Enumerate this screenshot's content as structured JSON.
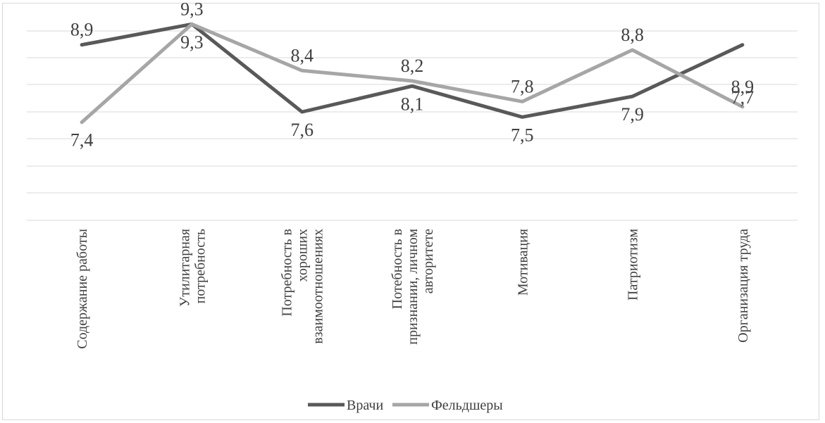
{
  "chart_data": {
    "type": "line",
    "title": "",
    "xlabel": "",
    "ylabel": "",
    "ylim": [
      5.5,
      9.7
    ],
    "grid": true,
    "legend_position": "bottom",
    "categories": [
      [
        "Содержание работы"
      ],
      [
        "Утилитарная",
        "потребность"
      ],
      [
        "Потребность в",
        "хороших",
        "взаимоотношениях"
      ],
      [
        "Потебность в",
        "признании, личном",
        "авторитете"
      ],
      [
        "Мотивация"
      ],
      [
        "Патриотизм"
      ],
      [
        "Организация труда"
      ]
    ],
    "series": [
      {
        "name": "Врачи",
        "color": "#595959",
        "values": [
          8.9,
          9.3,
          7.6,
          8.1,
          7.5,
          7.9,
          8.9
        ],
        "labels": [
          "8,9",
          "9,3",
          "7,6",
          "8,1",
          "7,5",
          "7,9",
          "8,9"
        ]
      },
      {
        "name": "Фельдшеры",
        "color": "#a6a6a6",
        "values": [
          7.4,
          9.3,
          8.4,
          8.2,
          7.8,
          8.8,
          7.7
        ],
        "labels": [
          "7,4",
          "9,3",
          "8,4",
          "8,2",
          "7,8",
          "8,8",
          "7,7"
        ]
      }
    ]
  }
}
